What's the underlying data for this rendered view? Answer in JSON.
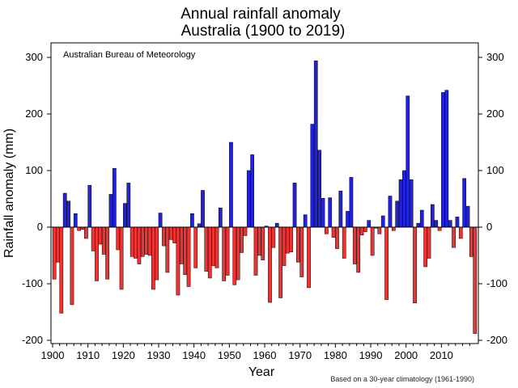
{
  "chart_data": {
    "type": "bar",
    "title": "Annual rainfall anomaly",
    "subtitle": "Australia (1900 to 2019)",
    "xlabel": "Year",
    "ylabel": "Rainfall anomaly (mm)",
    "ylim": [
      -210,
      320
    ],
    "xlim": [
      1900,
      2019
    ],
    "y_ticks": [
      -200,
      -100,
      0,
      100,
      200,
      300
    ],
    "x_ticks": [
      1900,
      1910,
      1920,
      1930,
      1940,
      1950,
      1960,
      1970,
      1980,
      1990,
      2000,
      2010
    ],
    "y_ticks_right": true,
    "grid": false,
    "source_label": "Australian Bureau of Meteorology",
    "footnote": "Based on a 30-year climatology (1961-1990)",
    "positive_color": "#2222dd",
    "negative_color": "#ee3333",
    "years": [
      1900,
      1901,
      1902,
      1903,
      1904,
      1905,
      1906,
      1907,
      1908,
      1909,
      1910,
      1911,
      1912,
      1913,
      1914,
      1915,
      1916,
      1917,
      1918,
      1919,
      1920,
      1921,
      1922,
      1923,
      1924,
      1925,
      1926,
      1927,
      1928,
      1929,
      1930,
      1931,
      1932,
      1933,
      1934,
      1935,
      1936,
      1937,
      1938,
      1939,
      1940,
      1941,
      1942,
      1943,
      1944,
      1945,
      1946,
      1947,
      1948,
      1949,
      1950,
      1951,
      1952,
      1953,
      1954,
      1955,
      1956,
      1957,
      1958,
      1959,
      1960,
      1961,
      1962,
      1963,
      1964,
      1965,
      1966,
      1967,
      1968,
      1969,
      1970,
      1971,
      1972,
      1973,
      1974,
      1975,
      1976,
      1977,
      1978,
      1979,
      1980,
      1981,
      1982,
      1983,
      1984,
      1985,
      1986,
      1987,
      1988,
      1989,
      1990,
      1991,
      1992,
      1993,
      1994,
      1995,
      1996,
      1997,
      1998,
      1999,
      2000,
      2001,
      2002,
      2003,
      2004,
      2005,
      2006,
      2007,
      2008,
      2009,
      2010,
      2011,
      2012,
      2013,
      2014,
      2015,
      2016,
      2017,
      2018,
      2019
    ],
    "values": [
      -92,
      -62,
      -152,
      60,
      46,
      -137,
      24,
      -6,
      -4,
      -20,
      74,
      -42,
      -95,
      -30,
      -48,
      -92,
      58,
      104,
      -40,
      -110,
      42,
      78,
      -52,
      -55,
      -65,
      -52,
      -48,
      -50,
      -110,
      -93,
      25,
      -33,
      -80,
      -22,
      -28,
      -120,
      -65,
      -84,
      -105,
      24,
      -72,
      6,
      65,
      -78,
      -90,
      -68,
      -72,
      34,
      -95,
      -85,
      150,
      -102,
      -93,
      -45,
      -15,
      100,
      128,
      -85,
      -50,
      -58,
      2,
      -133,
      -36,
      7,
      -125,
      -68,
      -46,
      -44,
      78,
      -62,
      -88,
      22,
      -107,
      182,
      294,
      136,
      51,
      -12,
      52,
      -18,
      -38,
      64,
      -55,
      28,
      88,
      -65,
      -80,
      -14,
      -8,
      12,
      -50,
      -2,
      -12,
      20,
      -128,
      55,
      -6,
      46,
      84,
      100,
      232,
      84,
      -134,
      7,
      30,
      -70,
      -55,
      40,
      12,
      -6,
      238,
      242,
      12,
      -36,
      18,
      -20,
      86,
      37,
      -52,
      -188
    ]
  }
}
